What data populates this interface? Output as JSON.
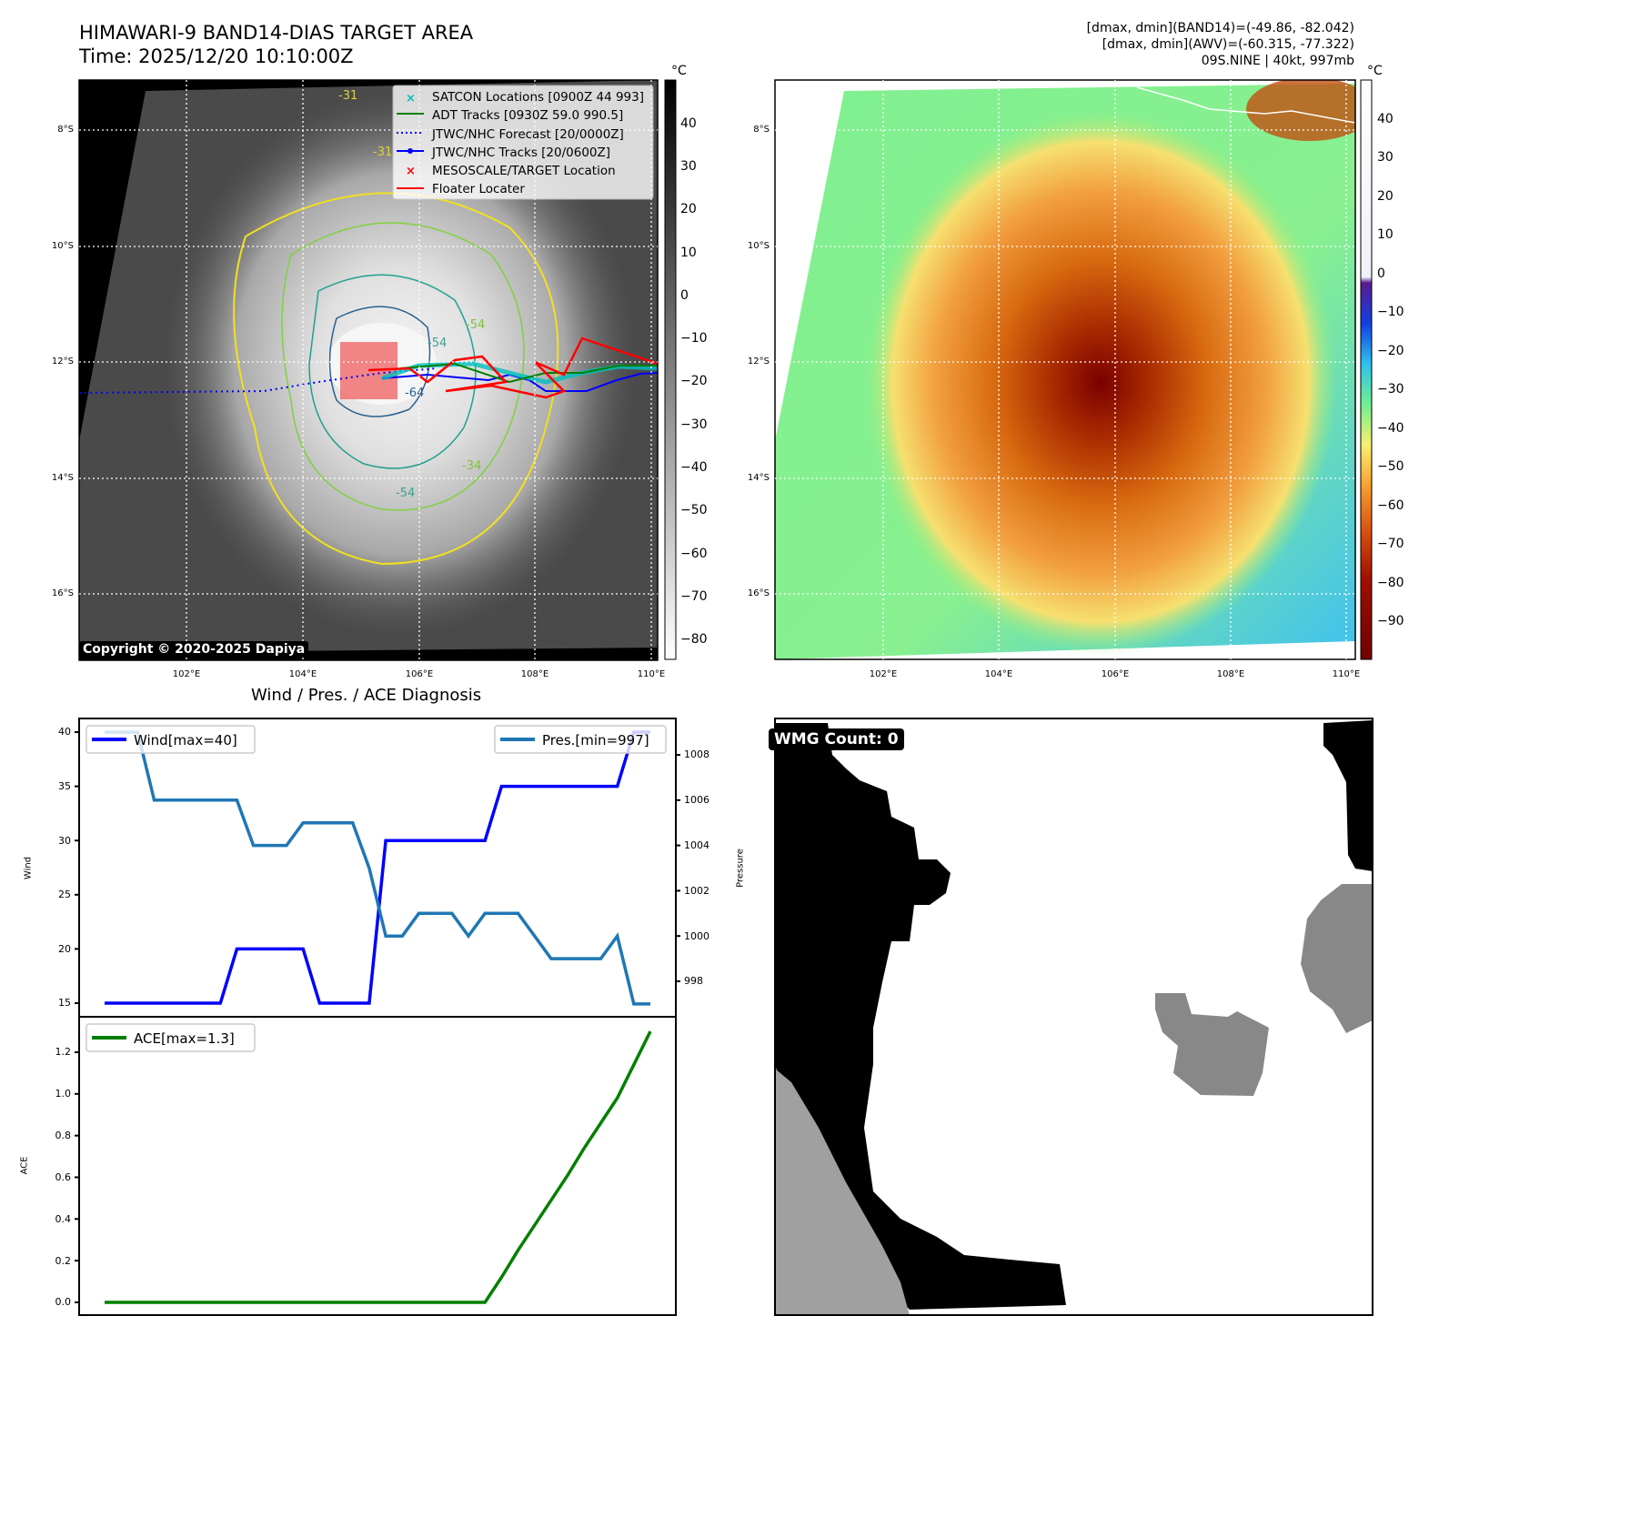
{
  "header": {
    "title": "HIMAWARI-9 BAND14-DIAS TARGET AREA",
    "time": "Time: 2025/12/20 10:10:00Z",
    "info": [
      "[dmax, dmin](BAND14)=(-49.86, -82.042)",
      "[dmax, dmin](AWV)=(-60.315, -77.322)",
      "09S.NINE | 40kt, 997mb"
    ]
  },
  "maps": {
    "lat_ticks": [
      "8°S",
      "10°S",
      "12°S",
      "14°S",
      "16°S"
    ],
    "lon_ticks": [
      "102°E",
      "104°E",
      "106°E",
      "108°E",
      "110°E"
    ],
    "copyright": "Copyright © 2020-2025 Dapiya",
    "legend": [
      "SATCON Locations [0900Z 44 993]",
      "ADT Tracks [0930Z 59.0 990.5]",
      "JTWC/NHC Forecast [20/0000Z]",
      "JTWC/NHC Tracks [20/0600Z]",
      "MESOSCALE/TARGET Location",
      "Floater Locater"
    ],
    "contour_labels": [
      "-31",
      "-31",
      "-54",
      "-54",
      "-64",
      "-34",
      "-54"
    ],
    "colorbar_unit": "°C",
    "left_colorbar_ticks": [
      "40",
      "30",
      "20",
      "10",
      "0",
      "−10",
      "−20",
      "−30",
      "−40",
      "−50",
      "−60",
      "−70",
      "−80"
    ],
    "right_colorbar_ticks": [
      "40",
      "30",
      "20",
      "10",
      "0",
      "−10",
      "−20",
      "−30",
      "−40",
      "−50",
      "−60",
      "−70",
      "−80",
      "−90"
    ],
    "colors": {
      "satcon": "#00bfbf",
      "adt": "#008000",
      "jtwc": "#0000ff",
      "target": "#ff0000"
    }
  },
  "wmg": {
    "label": "WMG Count: 0"
  },
  "chart_data": [
    {
      "type": "line",
      "title": "Wind / Pres. / ACE Diagnosis",
      "ylabel": "Wind",
      "y2label": "Pressure",
      "ylim": [
        14,
        41
      ],
      "y2lim": [
        996.1,
        1009.3
      ],
      "yticks": [
        "15",
        "20",
        "25",
        "30",
        "35",
        "40"
      ],
      "y2ticks": [
        "998",
        "1000",
        "1002",
        "1004",
        "1006",
        "1008"
      ],
      "series": [
        {
          "name": "Wind[max=40]",
          "color": "#0000ff",
          "axis": "left",
          "values": [
            15,
            15,
            15,
            15,
            15,
            15,
            15,
            15,
            20,
            20,
            20,
            20,
            20,
            15,
            15,
            15,
            15,
            30,
            30,
            30,
            30,
            30,
            30,
            30,
            35,
            35,
            35,
            35,
            35,
            35,
            35,
            35,
            40,
            40
          ]
        },
        {
          "name": "Pres.[min=997]",
          "color": "#1f77b4",
          "axis": "right",
          "values": [
            1009,
            1009,
            1009,
            1006,
            1006,
            1006,
            1006,
            1006,
            1006,
            1004,
            1004,
            1004,
            1005,
            1005,
            1005,
            1005,
            1003,
            1000,
            1000,
            1001,
            1001,
            1001,
            1000,
            1001,
            1001,
            1001,
            1000,
            999,
            999,
            999,
            999,
            1000,
            997,
            997
          ]
        }
      ]
    },
    {
      "type": "line",
      "ylabel": "ACE",
      "ylim": [
        -0.06,
        1.36
      ],
      "yticks": [
        "0.0",
        "0.2",
        "0.4",
        "0.6",
        "0.8",
        "1.0",
        "1.2"
      ],
      "series": [
        {
          "name": "ACE[max=1.3]",
          "color": "#008000",
          "values": [
            0,
            0,
            0,
            0,
            0,
            0,
            0,
            0,
            0,
            0,
            0,
            0,
            0,
            0,
            0,
            0,
            0,
            0,
            0,
            0,
            0,
            0,
            0,
            0,
            0.12,
            0.25,
            0.37,
            0.49,
            0.61,
            0.74,
            0.86,
            0.98,
            1.14,
            1.3
          ]
        }
      ]
    }
  ]
}
